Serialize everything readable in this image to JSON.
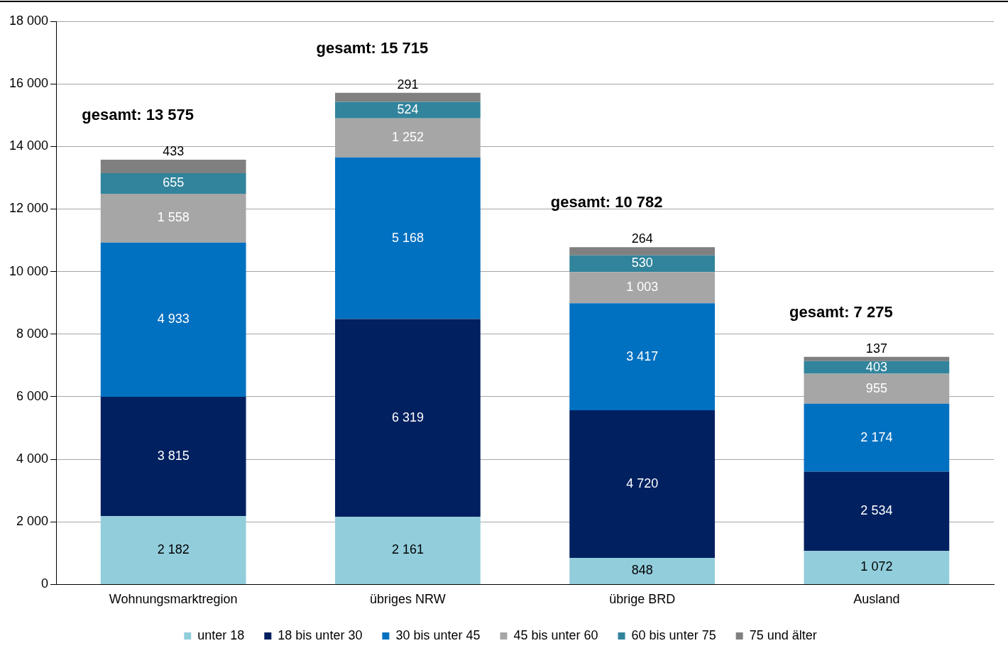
{
  "chart_data": {
    "type": "bar",
    "stacked": true,
    "categories": [
      "Wohnungsmarktregion",
      "übriges NRW",
      "übrige BRD",
      "Ausland"
    ],
    "series": [
      {
        "name": "unter 18",
        "color": "#92cddc",
        "values": [
          2182,
          2161,
          848,
          1072
        ]
      },
      {
        "name": "18 bis unter 30",
        "color": "#002060",
        "values": [
          3815,
          6319,
          4720,
          2534
        ]
      },
      {
        "name": "30 bis unter 45",
        "color": "#0070c0",
        "values": [
          4933,
          5168,
          3417,
          2174
        ]
      },
      {
        "name": "45 bis unter 60",
        "color": "#a6a6a6",
        "values": [
          1558,
          1252,
          1003,
          955
        ]
      },
      {
        "name": "60 bis unter 75",
        "color": "#31849b",
        "values": [
          655,
          524,
          530,
          403
        ]
      },
      {
        "name": "75 und älter",
        "color": "#808080",
        "values": [
          433,
          291,
          264,
          137
        ]
      }
    ],
    "ylim": [
      0,
      18000
    ],
    "yticks": [
      {
        "value": 0,
        "label": "0"
      },
      {
        "value": 2000,
        "label": "2 000"
      },
      {
        "value": 4000,
        "label": "4 000"
      },
      {
        "value": 6000,
        "label": "6 000"
      },
      {
        "value": 8000,
        "label": "8 000"
      },
      {
        "value": 10000,
        "label": "10 000"
      },
      {
        "value": 12000,
        "label": "12 000"
      },
      {
        "value": 14000,
        "label": "14 000"
      },
      {
        "value": 16000,
        "label": "16 000"
      },
      {
        "value": 18000,
        "label": "18 000"
      }
    ],
    "grid": "y",
    "legend": "bottom",
    "data_labels": true,
    "totals": [
      "gesamt: 13 575",
      "gesamt: 15 715",
      "gesamt: 10 782",
      "gesamt: 7 275"
    ]
  }
}
